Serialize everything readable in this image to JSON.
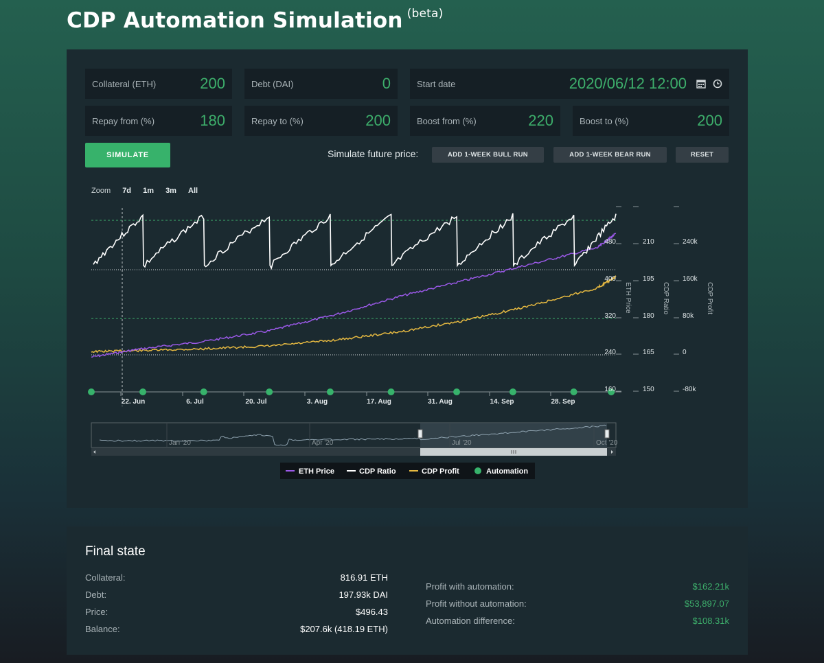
{
  "page": {
    "title": "CDP Automation Simulation",
    "title_badge": "(beta)"
  },
  "inputs": {
    "collateral": {
      "label": "Collateral (ETH)",
      "value": "200"
    },
    "debt": {
      "label": "Debt (DAI)",
      "value": "0"
    },
    "start_date": {
      "label": "Start date",
      "value": "2020/06/12 12:00"
    },
    "repay_from": {
      "label": "Repay from (%)",
      "value": "180"
    },
    "repay_to": {
      "label": "Repay to (%)",
      "value": "200"
    },
    "boost_from": {
      "label": "Boost from (%)",
      "value": "220"
    },
    "boost_to": {
      "label": "Boost to (%)",
      "value": "200"
    }
  },
  "actions": {
    "simulate": "SIMULATE",
    "future_label": "Simulate future price:",
    "bull": "ADD 1-WEEK BULL RUN",
    "bear": "ADD 1-WEEK BEAR RUN",
    "reset": "RESET"
  },
  "zoom": {
    "label": "Zoom",
    "options": [
      "7d",
      "1m",
      "3m",
      "All"
    ]
  },
  "colors": {
    "accent": "#3dae6b",
    "eth": "#9b59e8",
    "ratio": "#ffffff",
    "profit": "#e6b941",
    "automation": "#37b26b"
  },
  "chart_data": {
    "type": "line",
    "x_tick_labels": [
      "22. Jun",
      "6. Jul",
      "20. Jul",
      "3. Aug",
      "17. Aug",
      "31. Aug",
      "14. Sep",
      "28. Sep"
    ],
    "axes": {
      "eth_price": {
        "title": "ETH Price",
        "ticks": [
          "160",
          "240",
          "320",
          "400",
          "480"
        ]
      },
      "cdp_ratio": {
        "title": "CDP Ratio",
        "ticks": [
          "150",
          "165",
          "180",
          "195",
          "210"
        ]
      },
      "cdp_profit": {
        "title": "CDP Profit",
        "ticks": [
          "-80k",
          "0",
          "80k",
          "160k",
          "240k"
        ]
      }
    },
    "series": [
      {
        "name": "ETH Price",
        "x": [
          "2020-06-12",
          "2020-06-22",
          "2020-07-06",
          "2020-07-20",
          "2020-08-03",
          "2020-08-17",
          "2020-08-31",
          "2020-09-14",
          "2020-09-28",
          "2020-10-02"
        ],
        "values": [
          228,
          245,
          262,
          285,
          320,
          360,
          395,
          430,
          465,
          496
        ]
      },
      {
        "name": "CDP Profit",
        "x": [
          "2020-06-12",
          "2020-06-22",
          "2020-07-06",
          "2020-07-20",
          "2020-08-03",
          "2020-08-17",
          "2020-08-31",
          "2020-09-14",
          "2020-09-28",
          "2020-10-02"
        ],
        "values": [
          0,
          2000,
          6000,
          12000,
          25000,
          43000,
          68000,
          100000,
          138000,
          162210
        ]
      },
      {
        "name": "CDP Ratio",
        "description": "sawtooth between repay 180% and boost 220% thresholds"
      },
      {
        "name": "Automation",
        "x": [
          "2020-06-12",
          "2020-06-23",
          "2020-07-06",
          "2020-07-20",
          "2020-08-02",
          "2020-08-15",
          "2020-08-29",
          "2020-09-10",
          "2020-09-23",
          "2020-10-01"
        ]
      }
    ],
    "reference_lines": {
      "boost_from": 220,
      "repay_to": 200,
      "repay_from": 180,
      "liquidation": 150
    },
    "navigator_labels": [
      "Jan '20",
      "Apr '20",
      "Jul '20",
      "Oct '20"
    ]
  },
  "legend": [
    "ETH Price",
    "CDP Ratio",
    "CDP Profit",
    "Automation"
  ],
  "final_state": {
    "title": "Final state",
    "left": [
      {
        "label": "Collateral:",
        "value": "816.91 ETH"
      },
      {
        "label": "Debt:",
        "value": "197.93k DAI"
      },
      {
        "label": "Price:",
        "value": "$496.43"
      },
      {
        "label": "Balance:",
        "value": "$207.6k (418.19 ETH)"
      }
    ],
    "right": [
      {
        "label": "Profit with automation:",
        "value": "$162.21k"
      },
      {
        "label": "Profit without automation:",
        "value": "$53,897.07"
      },
      {
        "label": "Automation difference:",
        "value": "$108.31k"
      }
    ]
  }
}
